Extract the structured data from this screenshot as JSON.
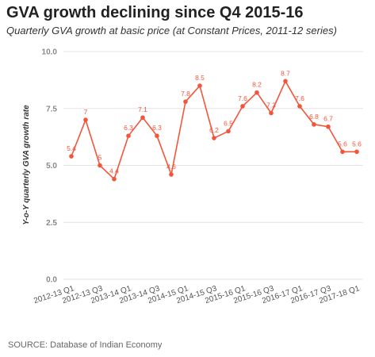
{
  "chart_data": {
    "type": "line",
    "title": "GVA growth declining since Q4 2015-16",
    "subtitle": "Quarterly GVA growth at basic price (at Constant Prices, 2011-12 series)",
    "xlabel": "",
    "ylabel": "Y-o-Y quarterly GVA growth rate",
    "ylim": [
      0,
      10
    ],
    "yticks": [
      "0.0",
      "2.5",
      "5.0",
      "7.5",
      "10.0"
    ],
    "grid": "horizontal",
    "x_tick_labels": [
      "2012-13 Q1",
      "2012-13 Q3",
      "2013-14 Q1",
      "2013-14 Q3",
      "2014-15 Q1",
      "2014-15 Q3",
      "2015-16 Q1",
      "2015-16 Q3",
      "2016-17 Q1",
      "2016-17 Q3",
      "2017-18 Q1"
    ],
    "series": [
      {
        "color": "#f4553a",
        "values": [
          5.4,
          7,
          5,
          4.4,
          6.3,
          7.1,
          6.3,
          4.6,
          7.8,
          8.5,
          6.2,
          6.5,
          7.6,
          8.2,
          7.3,
          8.7,
          7.6,
          6.8,
          6.7,
          5.6,
          5.6
        ],
        "labels": [
          "5.4",
          "7",
          "5",
          "4.4",
          "6.3",
          "7.1",
          "6.3",
          "4.6",
          "7.8",
          "8.5",
          "6.2",
          "6.5",
          "7.6",
          "8.2",
          "7.3",
          "8.7",
          "7.6",
          "6.8",
          "6.7",
          "5.6",
          "5.6"
        ]
      }
    ]
  },
  "source": "SOURCE: Database of Indian Economy"
}
